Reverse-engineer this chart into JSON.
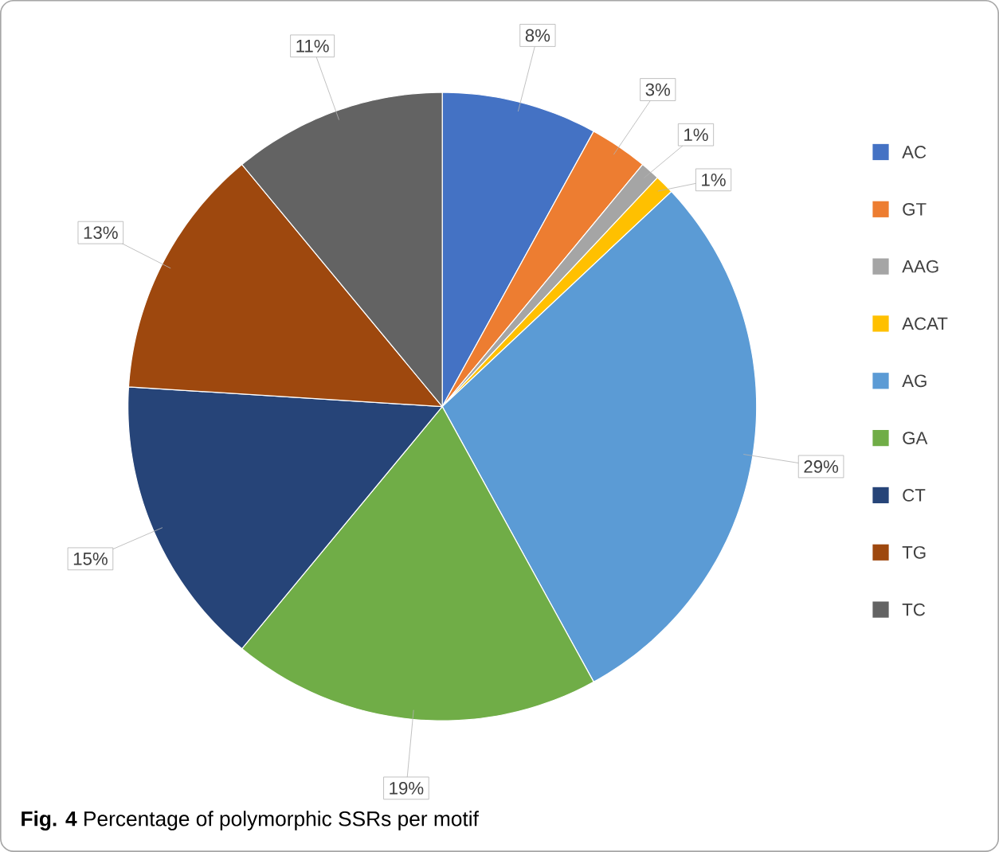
{
  "chart_data": {
    "type": "pie",
    "categories": [
      "AC",
      "GT",
      "AAG",
      "ACAT",
      "AG",
      "GA",
      "CT",
      "TG",
      "TC"
    ],
    "values": [
      8,
      3,
      1,
      1,
      29,
      19,
      15,
      13,
      11
    ],
    "value_labels": [
      "8%",
      "3%",
      "1%",
      "1%",
      "29%",
      "19%",
      "15%",
      "13%",
      "11%"
    ],
    "colors": [
      "#4472c4",
      "#ed7d31",
      "#a5a5a5",
      "#ffc000",
      "#5b9bd5",
      "#70ad47",
      "#264478",
      "#9e480e",
      "#636363"
    ],
    "legend": "right",
    "annotations": [
      "**Fig. 4** Percentage of polymorphic SSRs per motif"
    ]
  }
}
